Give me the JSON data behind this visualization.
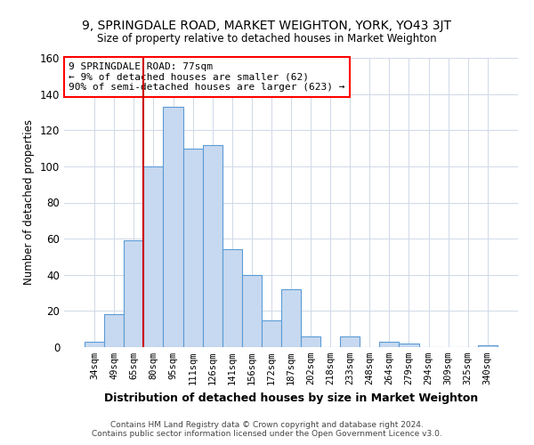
{
  "title": "9, SPRINGDALE ROAD, MARKET WEIGHTON, YORK, YO43 3JT",
  "subtitle": "Size of property relative to detached houses in Market Weighton",
  "xlabel": "Distribution of detached houses by size in Market Weighton",
  "ylabel": "Number of detached properties",
  "bar_labels": [
    "34sqm",
    "49sqm",
    "65sqm",
    "80sqm",
    "95sqm",
    "111sqm",
    "126sqm",
    "141sqm",
    "156sqm",
    "172sqm",
    "187sqm",
    "202sqm",
    "218sqm",
    "233sqm",
    "248sqm",
    "264sqm",
    "279sqm",
    "294sqm",
    "309sqm",
    "325sqm",
    "340sqm"
  ],
  "bar_values": [
    3,
    18,
    59,
    100,
    133,
    110,
    112,
    54,
    40,
    15,
    32,
    6,
    0,
    6,
    0,
    3,
    2,
    0,
    0,
    0,
    1
  ],
  "bar_color": "#c7d9f0",
  "bar_edge_color": "#5b9bd5",
  "vline_index": 3,
  "vline_color": "#cc0000",
  "ylim": [
    0,
    160
  ],
  "yticks": [
    0,
    20,
    40,
    60,
    80,
    100,
    120,
    140,
    160
  ],
  "annotation_title": "9 SPRINGDALE ROAD: 77sqm",
  "annotation_line1": "← 9% of detached houses are smaller (62)",
  "annotation_line2": "90% of semi-detached houses are larger (623) →",
  "footer1": "Contains HM Land Registry data © Crown copyright and database right 2024.",
  "footer2": "Contains public sector information licensed under the Open Government Licence v3.0.",
  "background_color": "#ffffff",
  "grid_color": "#d0d8e8"
}
